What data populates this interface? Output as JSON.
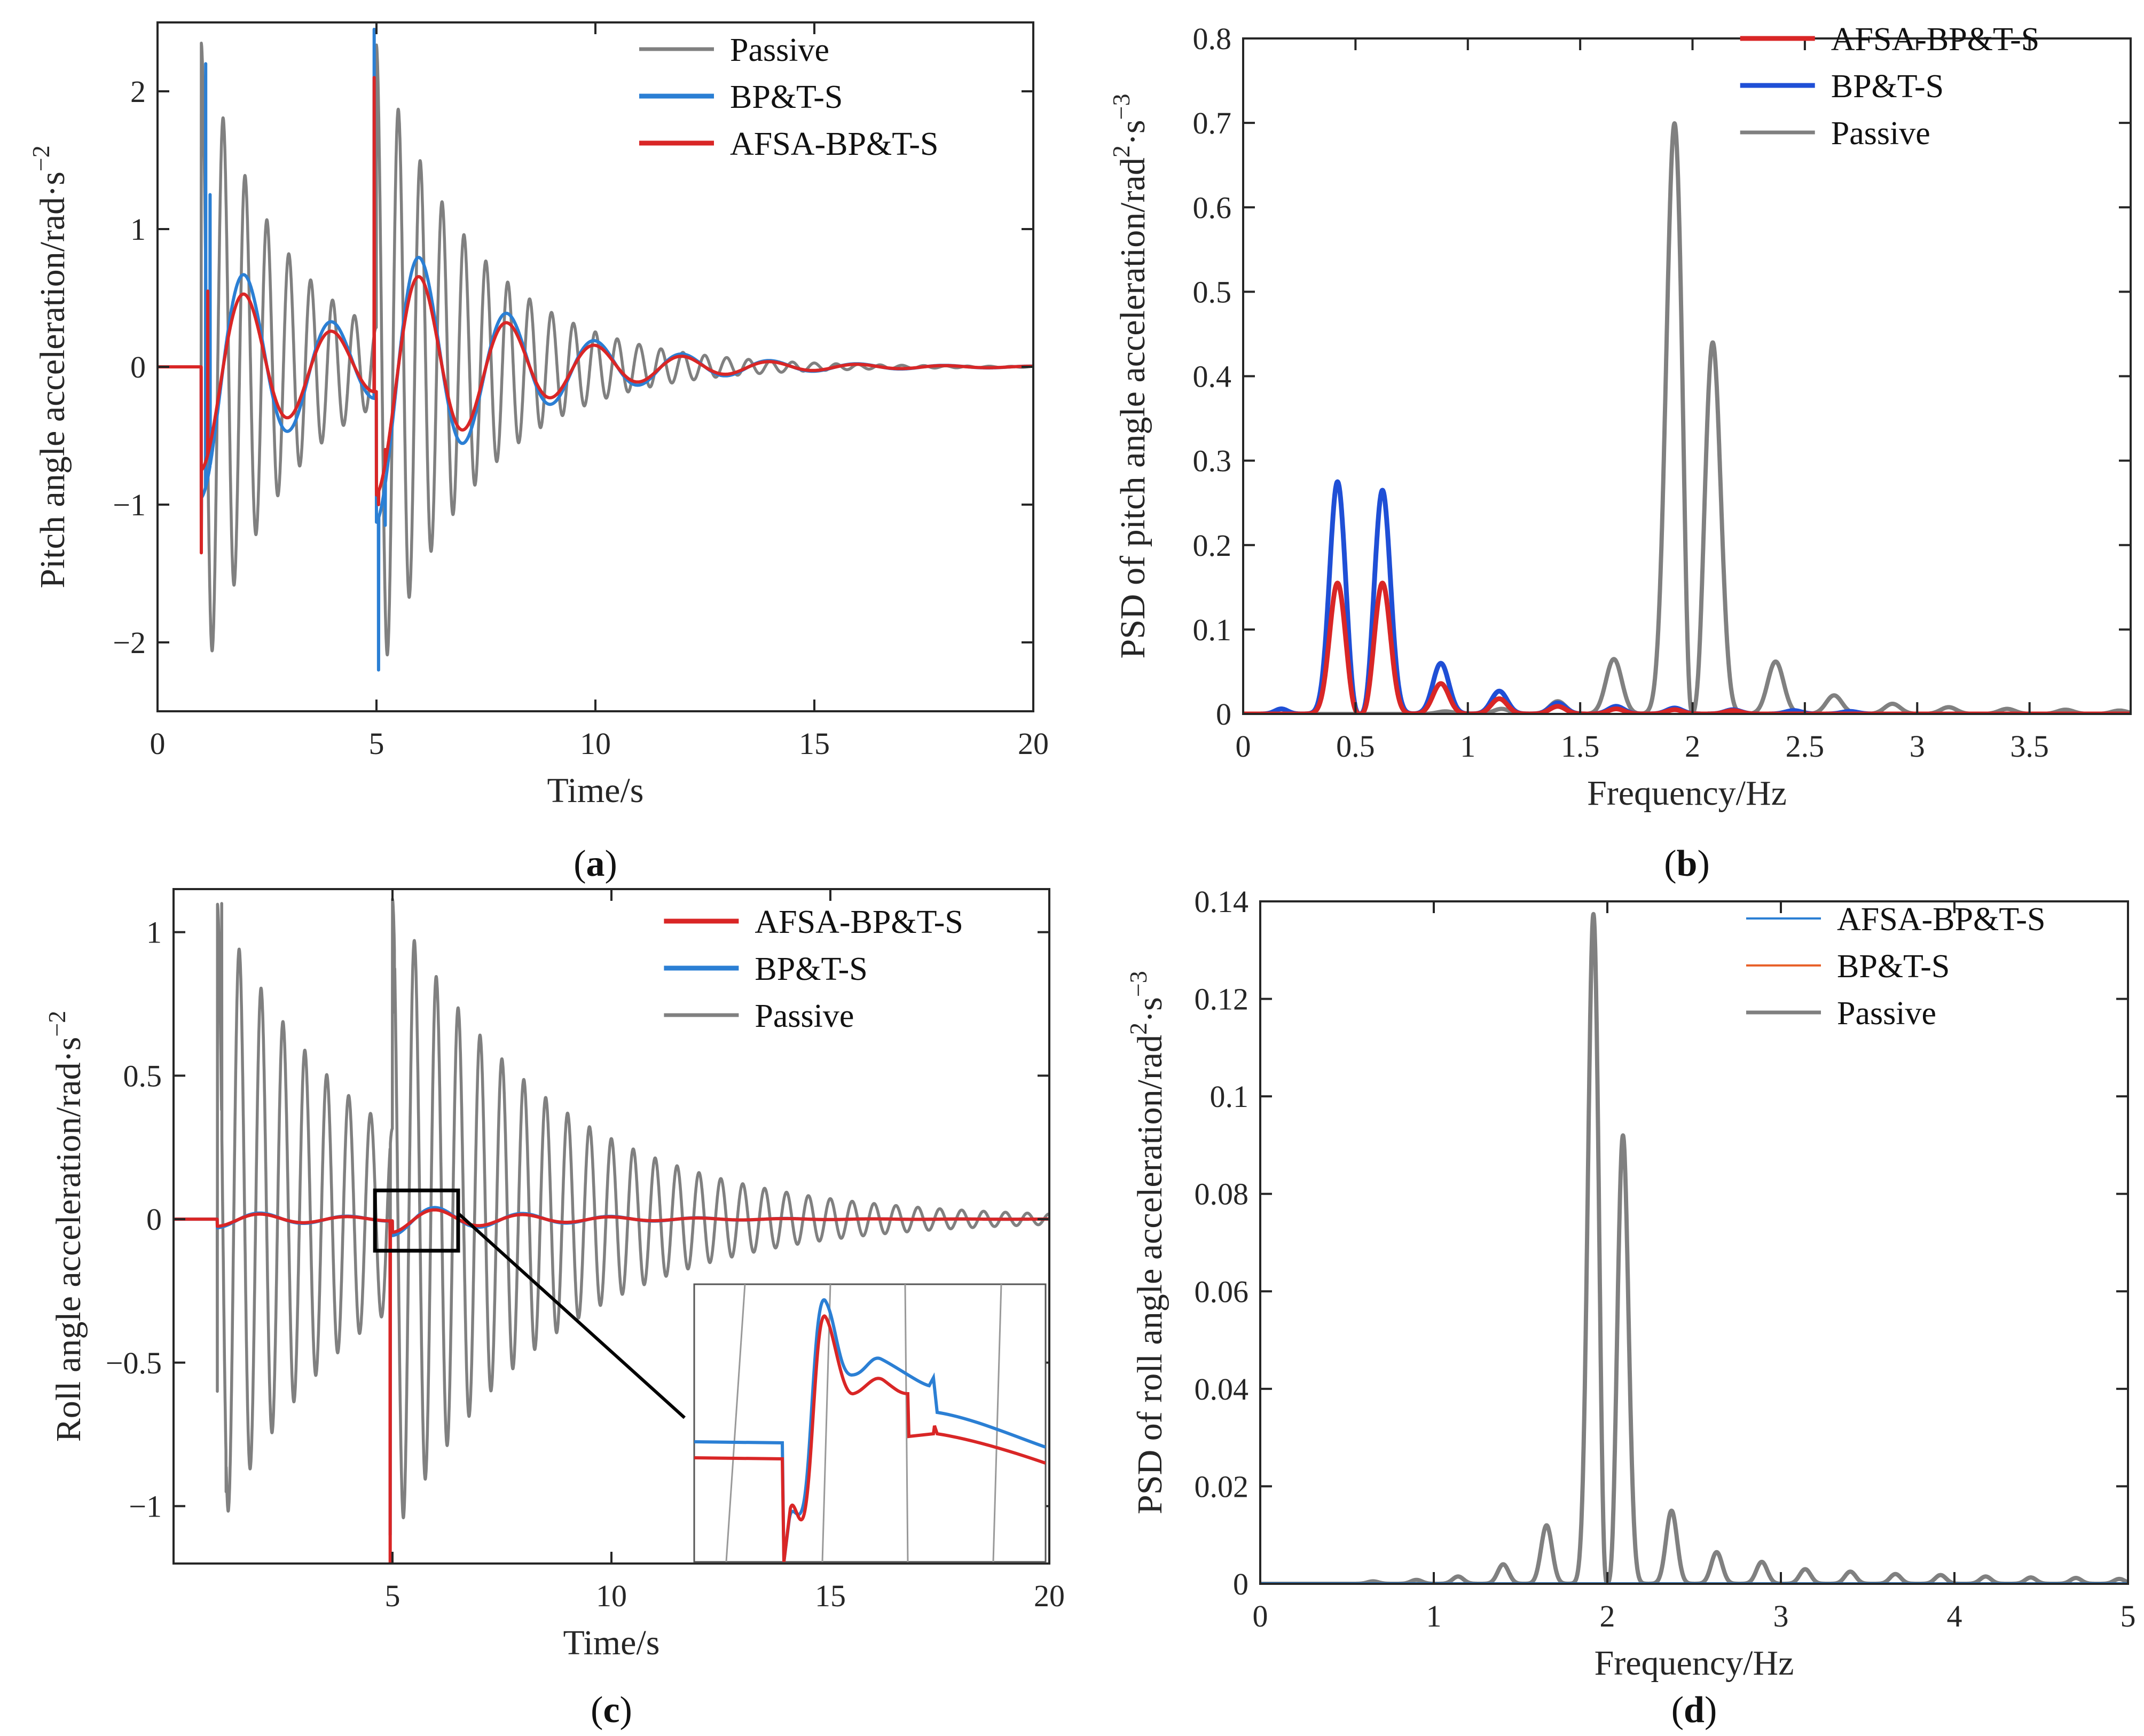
{
  "colors": {
    "afsa": "#d92626",
    "bpts": "#2b7fd4",
    "bpts_b": "#1f4fd6",
    "passive": "#808080",
    "orange": "#e8622a",
    "axis": "#262626"
  },
  "chart_data": [
    {
      "id": "a",
      "type": "line",
      "caption": "a",
      "xlabel": "Time/s",
      "ylabel": "Pitch angle  acceleration/rad·s",
      "ylabel_sup": "−2",
      "xlim": [
        0,
        20
      ],
      "ylim": [
        -2.5,
        2.5
      ],
      "xticks": [
        0,
        5,
        10,
        15,
        20
      ],
      "xtick_labels": [
        "0",
        "5",
        "10",
        "15",
        "20"
      ],
      "yticks": [
        -2,
        -1,
        0,
        1,
        2
      ],
      "ytick_labels": [
        "−2",
        "−1",
        "0",
        "1",
        "2"
      ],
      "legend_position": "top-right",
      "series": [
        {
          "name": "Passive",
          "color": "passive",
          "kind": "damped",
          "params": {
            "events": [
              {
                "t": 1.0,
                "A": 2.35,
                "f": 2.0,
                "tau": 1.9
              },
              {
                "t": 5.0,
                "A": 2.05,
                "f": 2.0,
                "tau": 2.3
              }
            ]
          }
        },
        {
          "name": "BP&T-S",
          "color": "bpts",
          "kind": "damped",
          "params": {
            "events": [
              {
                "t": 1.0,
                "A": 0.95,
                "f": 0.5,
                "tau": 2.8
              },
              {
                "t": 5.0,
                "A": 0.9,
                "f": 0.5,
                "tau": 2.8
              }
            ],
            "spikes": [
              {
                "t": 1.0,
                "v": -1.2
              },
              {
                "t": 1.1,
                "v": 2.2
              },
              {
                "t": 1.2,
                "v": 1.25
              },
              {
                "t": 4.95,
                "v": 2.45
              },
              {
                "t": 5.05,
                "v": -2.2
              },
              {
                "t": 5.2,
                "v": -1.15
              }
            ]
          }
        },
        {
          "name": "AFSA-BP&T-S",
          "color": "afsa",
          "kind": "damped",
          "params": {
            "events": [
              {
                "t": 1.0,
                "A": 0.75,
                "f": 0.5,
                "tau": 2.8
              },
              {
                "t": 5.0,
                "A": 0.75,
                "f": 0.5,
                "tau": 2.8
              }
            ],
            "spikes": [
              {
                "t": 1.0,
                "v": -1.35
              },
              {
                "t": 1.15,
                "v": 0.55
              },
              {
                "t": 4.95,
                "v": 2.1
              },
              {
                "t": 5.05,
                "v": -1.0
              },
              {
                "t": 5.2,
                "v": -0.6
              }
            ]
          }
        }
      ]
    },
    {
      "id": "b",
      "type": "line",
      "caption": "b",
      "xlabel": "Frequency/Hz",
      "ylabel": "PSD of pitch angle acceleration/rad",
      "ylabel_sup": "2",
      "ylabel_tail": "·s",
      "ylabel_sup2": "−3",
      "xlim": [
        0,
        3.95
      ],
      "ylim": [
        0,
        0.8
      ],
      "xticks": [
        0,
        0.5,
        1,
        1.5,
        2,
        2.5,
        3,
        3.5
      ],
      "xtick_labels": [
        "0",
        "0.5",
        "1",
        "1.5",
        "2",
        "2.5",
        "3",
        "3.5"
      ],
      "yticks": [
        0,
        0.1,
        0.2,
        0.3,
        0.4,
        0.5,
        0.6,
        0.7,
        0.8
      ],
      "ytick_labels": [
        "0",
        "0.1",
        "0.2",
        "0.3",
        "0.4",
        "0.5",
        "0.6",
        "0.7",
        "0.8"
      ],
      "legend_position": "top-right",
      "series": [
        {
          "name": "Passive",
          "color": "passive",
          "kind": "peaks",
          "params": {
            "peaks": [
              [
                1.92,
                0.7,
                0.052
              ],
              [
                2.09,
                0.44,
                0.05
              ],
              [
                1.65,
                0.065,
                0.05
              ],
              [
                2.37,
                0.062,
                0.05
              ],
              [
                2.63,
                0.022,
                0.05
              ],
              [
                2.89,
                0.012,
                0.05
              ],
              [
                3.14,
                0.008,
                0.05
              ],
              [
                3.4,
                0.006,
                0.05
              ],
              [
                3.66,
                0.005,
                0.05
              ],
              [
                3.9,
                0.004,
                0.05
              ],
              [
                1.4,
                0.015,
                0.05
              ],
              [
                1.15,
                0.006,
                0.05
              ],
              [
                0.9,
                0.003,
                0.05
              ]
            ],
            "zeros": [
              2.0
            ]
          }
        },
        {
          "name": "BP&T-S",
          "color": "bpts_b",
          "kind": "peaks",
          "params": {
            "peaks": [
              [
                0.42,
                0.275,
                0.05
              ],
              [
                0.62,
                0.265,
                0.05
              ],
              [
                0.88,
                0.06,
                0.05
              ],
              [
                1.14,
                0.027,
                0.05
              ],
              [
                1.4,
                0.013,
                0.05
              ],
              [
                1.66,
                0.009,
                0.05
              ],
              [
                1.92,
                0.007,
                0.05
              ],
              [
                2.18,
                0.005,
                0.05
              ],
              [
                2.45,
                0.004,
                0.05
              ],
              [
                2.7,
                0.003,
                0.05
              ],
              [
                0.17,
                0.006,
                0.04
              ]
            ],
            "zeros": [
              0.52
            ]
          }
        },
        {
          "name": "AFSA-BP&T-S",
          "color": "afsa",
          "kind": "peaks",
          "params": {
            "peaks": [
              [
                0.42,
                0.155,
                0.05
              ],
              [
                0.62,
                0.155,
                0.05
              ],
              [
                0.88,
                0.036,
                0.05
              ],
              [
                1.14,
                0.018,
                0.05
              ],
              [
                1.4,
                0.009,
                0.05
              ],
              [
                1.66,
                0.006,
                0.05
              ],
              [
                1.92,
                0.005,
                0.05
              ],
              [
                2.18,
                0.004,
                0.05
              ]
            ],
            "zeros": [
              0.52
            ]
          }
        }
      ],
      "legend_order": [
        "AFSA-BP&T-S",
        "BP&T-S",
        "Passive"
      ]
    },
    {
      "id": "c",
      "type": "line",
      "caption": "c",
      "xlabel": "Time/s",
      "ylabel": "Roll angle acceleration/rad·s",
      "ylabel_sup": "−2",
      "xlim": [
        0,
        20
      ],
      "ylim": [
        -1.2,
        1.15
      ],
      "xticks": [
        5,
        10,
        15,
        20
      ],
      "xtick_labels": [
        "5",
        "10",
        "15",
        "20"
      ],
      "yticks": [
        -1,
        -0.5,
        0,
        0.5,
        1
      ],
      "ytick_labels": [
        "−1",
        "−0.5",
        "0",
        "0.5",
        "1"
      ],
      "legend_position": "top-right",
      "series": [
        {
          "name": "Passive",
          "color": "passive",
          "kind": "damped",
          "params": {
            "events": [
              {
                "t": 1.0,
                "A": 1.1,
                "f": 2.0,
                "tau": 3.2
              },
              {
                "t": 5.0,
                "A": 0.8,
                "f": 2.0,
                "tau": 3.8
              }
            ],
            "spikes": [
              {
                "t": 1.0,
                "v": -0.6
              },
              {
                "t": 1.1,
                "v": 1.1
              },
              {
                "t": 1.2,
                "v": -0.95
              },
              {
                "t": 4.95,
                "v": -1.15
              },
              {
                "t": 5.05,
                "v": 0.72
              }
            ]
          }
        },
        {
          "name": "BP&T-S",
          "color": "bpts",
          "kind": "damped",
          "params": {
            "events": [
              {
                "t": 1.0,
                "A": 0.03,
                "f": 0.5,
                "tau": 2.8
              },
              {
                "t": 5.0,
                "A": 0.05,
                "f": 0.5,
                "tau": 2.8
              }
            ],
            "spikes": [
              {
                "t": 4.95,
                "v": -1.1
              }
            ]
          }
        },
        {
          "name": "AFSA-BP&T-S",
          "color": "afsa",
          "kind": "damped",
          "params": {
            "events": [
              {
                "t": 1.0,
                "A": 0.025,
                "f": 0.5,
                "tau": 2.8
              },
              {
                "t": 5.0,
                "A": 0.04,
                "f": 0.5,
                "tau": 2.8
              }
            ],
            "spikes": [
              {
                "t": 4.95,
                "v": -1.2
              }
            ]
          }
        }
      ],
      "legend_order": [
        "AFSA-BP&T-S",
        "BP&T-S",
        "Passive"
      ],
      "zoom_box": {
        "xlim": [
          4.6,
          6.5
        ],
        "ylim": [
          -0.11,
          0.1
        ]
      }
    },
    {
      "id": "d",
      "type": "line",
      "caption": "d",
      "xlabel": "Frequency/Hz",
      "ylabel": "PSD of roll angle acceleration/rad",
      "ylabel_sup": "2",
      "ylabel_tail": "·s",
      "ylabel_sup2": "−3",
      "xlim": [
        0,
        5
      ],
      "ylim": [
        0,
        0.14
      ],
      "xticks": [
        0,
        1,
        2,
        3,
        4,
        5
      ],
      "xtick_labels": [
        "0",
        "1",
        "2",
        "3",
        "4",
        "5"
      ],
      "yticks": [
        0,
        0.02,
        0.04,
        0.06,
        0.08,
        0.1,
        0.12,
        0.14
      ],
      "ytick_labels": [
        "0",
        "0.02",
        "0.04",
        "0.06",
        "0.08",
        "0.1",
        "0.12",
        "0.14"
      ],
      "legend_position": "top-right",
      "series": [
        {
          "name": "Passive",
          "color": "passive",
          "kind": "peaks",
          "params": {
            "peaks": [
              [
                1.92,
                0.1375,
                0.045
              ],
              [
                2.09,
                0.092,
                0.045
              ],
              [
                1.65,
                0.012,
                0.045
              ],
              [
                2.37,
                0.015,
                0.045
              ],
              [
                2.63,
                0.0065,
                0.045
              ],
              [
                2.89,
                0.0045,
                0.045
              ],
              [
                3.14,
                0.003,
                0.045
              ],
              [
                3.4,
                0.0025,
                0.045
              ],
              [
                3.66,
                0.002,
                0.045
              ],
              [
                3.92,
                0.0018,
                0.045
              ],
              [
                4.18,
                0.0015,
                0.045
              ],
              [
                4.44,
                0.0013,
                0.045
              ],
              [
                4.7,
                0.0012,
                0.045
              ],
              [
                4.95,
                0.001,
                0.045
              ],
              [
                1.4,
                0.004,
                0.045
              ],
              [
                1.14,
                0.0015,
                0.045
              ],
              [
                0.9,
                0.0008,
                0.045
              ],
              [
                0.65,
                0.0005,
                0.045
              ]
            ],
            "zeros": [
              2.0
            ]
          }
        },
        {
          "name": "BP&T-S",
          "color": "orange",
          "kind": "flat",
          "params": {
            "value": 0.0
          }
        },
        {
          "name": "AFSA-BP&T-S",
          "color": "bpts",
          "kind": "flat",
          "params": {
            "value": 0.0
          }
        }
      ],
      "legend_order": [
        "AFSA-BP&T-S",
        "BP&T-S",
        "Passive"
      ]
    }
  ]
}
